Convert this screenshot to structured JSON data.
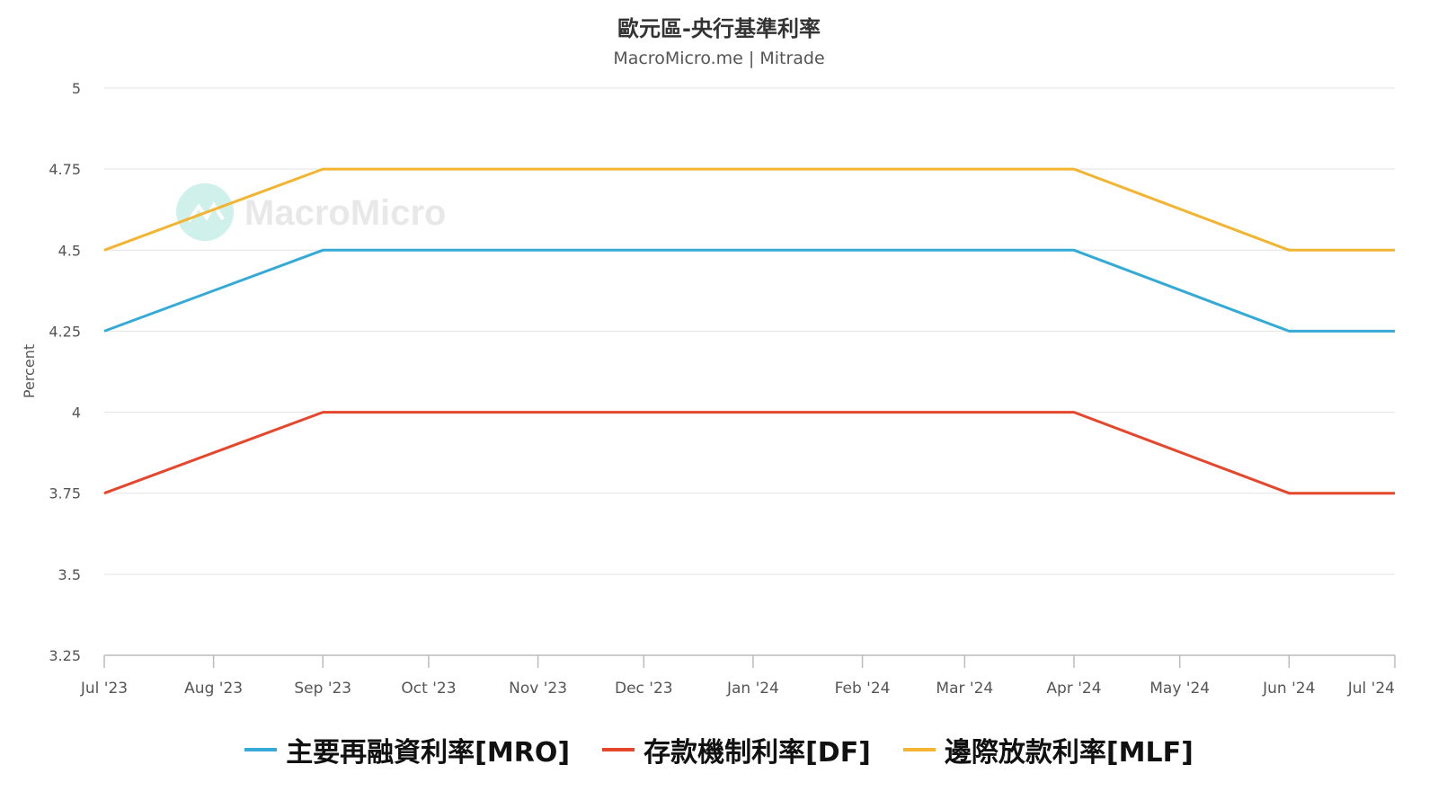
{
  "title": "歐元區-央行基準利率",
  "subtitle": "MacroMicro.me | Mitrade",
  "watermark": "MacroMicro",
  "chart_data": {
    "type": "line",
    "title": "歐元區-央行基準利率",
    "ylabel": "Percent",
    "xlabel": "",
    "ylim": [
      3.25,
      5
    ],
    "y_ticks": [
      "5",
      "4.75",
      "4.5",
      "4.25",
      "4",
      "3.75",
      "3.5",
      "3.25"
    ],
    "x_ticks": [
      "Jul '23",
      "Aug '23",
      "Sep '23",
      "Oct '23",
      "Nov '23",
      "Dec '23",
      "Jan '24",
      "Feb '24",
      "Mar '24",
      "Apr '24",
      "May '24",
      "Jun '24",
      "Jul '24"
    ],
    "grid": true,
    "legend_position": "bottom",
    "series": [
      {
        "name": "主要再融資利率[MRO]",
        "color": "#35aad7",
        "points": [
          {
            "x": "2023-07-01",
            "y": 4.25
          },
          {
            "x": "2023-09-01",
            "y": 4.5
          },
          {
            "x": "2024-04-01",
            "y": 4.5
          },
          {
            "x": "2024-06-01",
            "y": 4.25
          },
          {
            "x": "2024-07-01",
            "y": 4.25
          }
        ]
      },
      {
        "name": "存款機制利率[DF]",
        "color": "#e4472c",
        "points": [
          {
            "x": "2023-07-01",
            "y": 3.75
          },
          {
            "x": "2023-09-01",
            "y": 4.0
          },
          {
            "x": "2024-04-01",
            "y": 4.0
          },
          {
            "x": "2024-06-01",
            "y": 3.75
          },
          {
            "x": "2024-07-01",
            "y": 3.75
          }
        ]
      },
      {
        "name": "邊際放款利率[MLF]",
        "color": "#f2b431",
        "points": [
          {
            "x": "2023-07-01",
            "y": 4.5
          },
          {
            "x": "2023-09-01",
            "y": 4.75
          },
          {
            "x": "2024-04-01",
            "y": 4.75
          },
          {
            "x": "2024-06-01",
            "y": 4.5
          },
          {
            "x": "2024-07-01",
            "y": 4.5
          }
        ]
      }
    ]
  }
}
